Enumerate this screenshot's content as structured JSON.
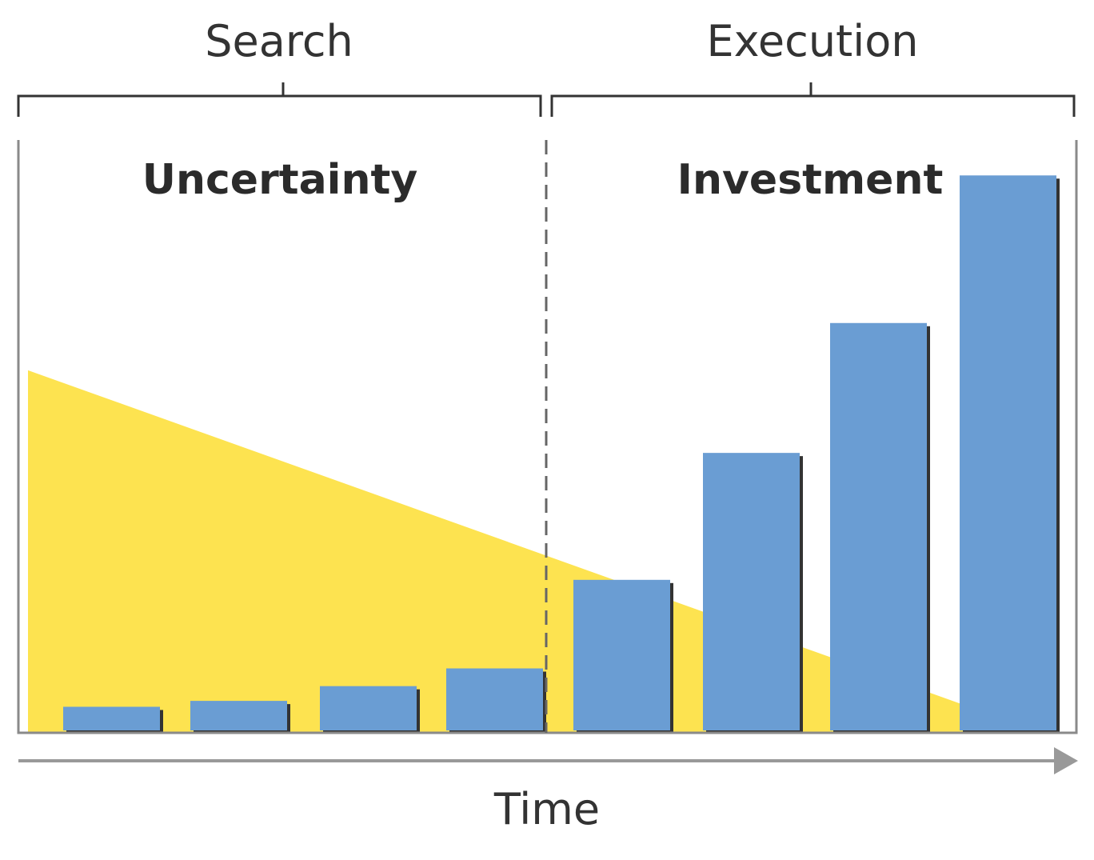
{
  "chart_data": {
    "type": "bar",
    "phases": [
      {
        "label": "Search"
      },
      {
        "label": "Execution"
      }
    ],
    "concepts": {
      "uncertainty_label": "Uncertainty",
      "investment_label": "Investment"
    },
    "xlabel": "Time",
    "ylabel": "",
    "ylim": [
      0,
      100
    ],
    "series": [
      {
        "name": "Investment",
        "values": [
          4,
          5,
          7.5,
          10.5,
          25.5,
          47,
          69,
          94
        ]
      },
      {
        "name": "Uncertainty",
        "type": "area",
        "values_at_edges": [
          61,
          3.5
        ]
      }
    ],
    "grid": false,
    "legend": "none",
    "divider_after_bar": 4
  },
  "colors": {
    "bar": "#6a9dd3",
    "bar_shadow": "#333333",
    "uncertainty_area": "#fde350",
    "frame": "#8a8a8a",
    "bracket": "#333333",
    "axis_arrow": "#999999",
    "divider": "#666666"
  }
}
